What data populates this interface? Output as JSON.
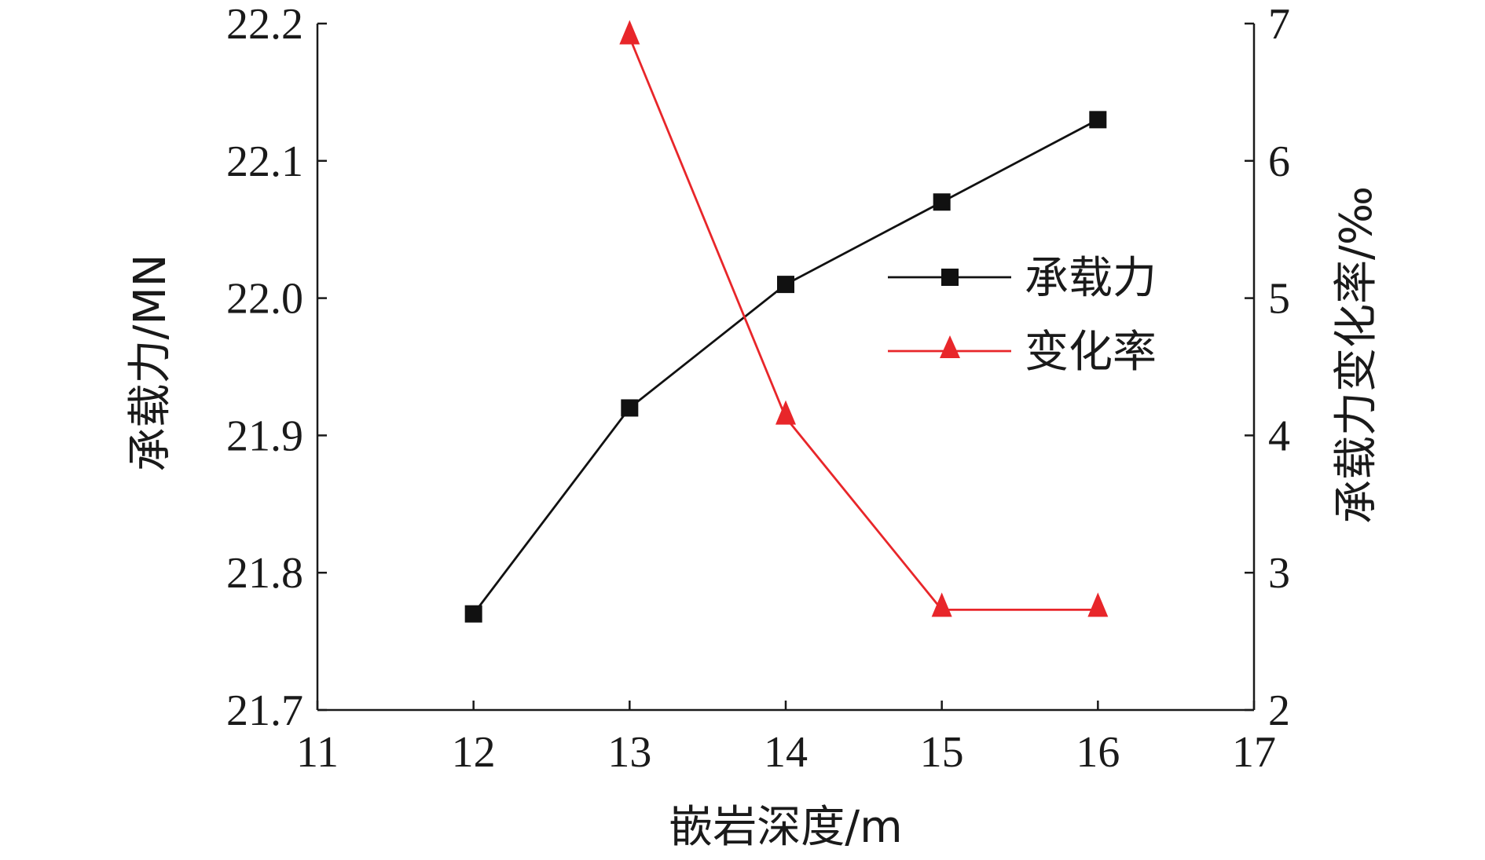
{
  "chart_data": {
    "type": "line",
    "title": "",
    "xlabel": "嵌岩深度/m",
    "ylabel_left": "承载力/MN",
    "ylabel_right": "承载力变化率/‰",
    "xlim": [
      11,
      17
    ],
    "ylim_left": [
      21.7,
      22.2
    ],
    "ylim_right": [
      2,
      7
    ],
    "x_ticks": [
      "11",
      "12",
      "13",
      "14",
      "15",
      "16",
      "17"
    ],
    "y_left_ticks": [
      "21.7",
      "21.8",
      "21.9",
      "22.0",
      "22.1",
      "22.2"
    ],
    "y_right_ticks": [
      "2",
      "3",
      "4",
      "5",
      "6",
      "7"
    ],
    "grid": false,
    "legend_position": "center-right",
    "series": [
      {
        "name": "承载力",
        "axis": "left",
        "color": "#111111",
        "marker": "square",
        "x": [
          12,
          13,
          14,
          15,
          16
        ],
        "y": [
          21.77,
          21.92,
          22.01,
          22.07,
          22.13
        ]
      },
      {
        "name": "变化率",
        "axis": "right",
        "color": "#e8262a",
        "marker": "triangle",
        "x": [
          13,
          14,
          15,
          16
        ],
        "y": [
          6.9,
          4.13,
          2.73,
          2.73
        ]
      }
    ]
  }
}
